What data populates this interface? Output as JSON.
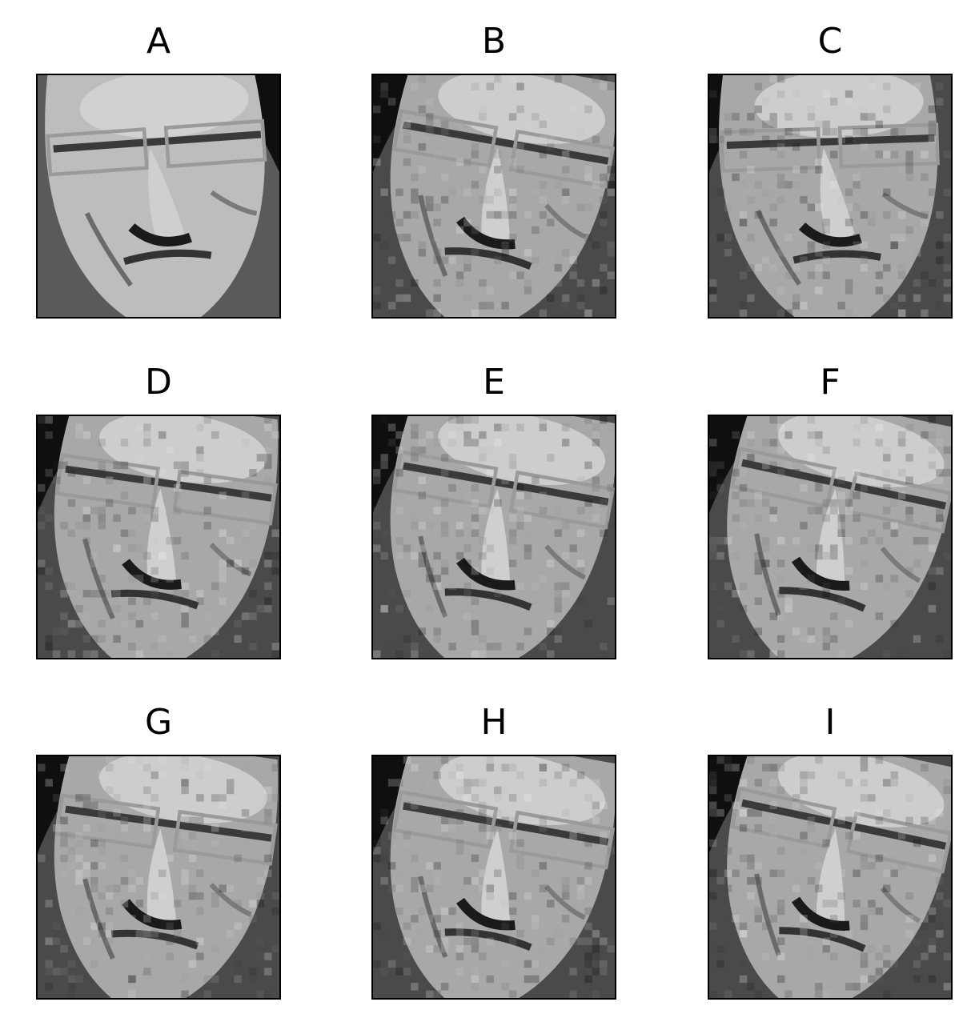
{
  "figure": {
    "panels": [
      {
        "label": "A",
        "variant": "original, slight rotation",
        "tint": "#8a8a8a"
      },
      {
        "label": "B",
        "variant": "noisy, rotated",
        "tint": "#7a7a7a"
      },
      {
        "label": "C",
        "variant": "noisy, rotated",
        "tint": "#858585"
      },
      {
        "label": "D",
        "variant": "noisy, rotated",
        "tint": "#777777"
      },
      {
        "label": "E",
        "variant": "noisy, rotated",
        "tint": "#777777"
      },
      {
        "label": "F",
        "variant": "noisy, rotated",
        "tint": "#777777"
      },
      {
        "label": "G",
        "variant": "noisy, rotated",
        "tint": "#747474"
      },
      {
        "label": "H",
        "variant": "noisy, rotated",
        "tint": "#777777"
      },
      {
        "label": "I",
        "variant": "noisy, rotated",
        "tint": "#787878"
      }
    ]
  }
}
